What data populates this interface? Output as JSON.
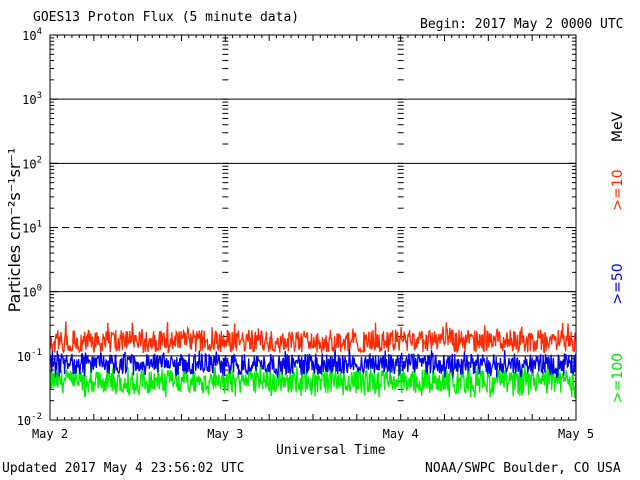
{
  "header": {
    "title": "GOES13 Proton Flux (5 minute data)",
    "begin": "Begin: 2017 May 2 0000 UTC"
  },
  "footer": {
    "updated": "Updated 2017 May  4 23:56:02 UTC",
    "credit": "NOAA/SWPC Boulder, CO USA"
  },
  "colors": {
    "p10": "#ff2a00",
    "p50": "#0000ee",
    "p100": "#00ee00",
    "grid": "#000000"
  },
  "chart_data": {
    "type": "line",
    "xlabel": "Universal Time",
    "ylabel": "Particles cm⁻²s⁻¹sr⁻¹",
    "yscale": "log",
    "ylim": [
      0.01,
      10000
    ],
    "ytick_labels": [
      {
        "base": "10",
        "exp": "-2",
        "value": 0.01
      },
      {
        "base": "10",
        "exp": "-1",
        "value": 0.1
      },
      {
        "base": "10",
        "exp": "0",
        "value": 1
      },
      {
        "base": "10",
        "exp": "1",
        "value": 10
      },
      {
        "base": "10",
        "exp": "2",
        "value": 100
      },
      {
        "base": "10",
        "exp": "3",
        "value": 1000
      },
      {
        "base": "10",
        "exp": "4",
        "value": 10000
      }
    ],
    "xlim": [
      "2017-05-02",
      "2017-05-05"
    ],
    "xtick_labels": [
      "May 2",
      "May 3",
      "May 4",
      "May 5"
    ],
    "unit_label": "MeV",
    "grid": true,
    "series": [
      {
        "name": ">=10",
        "color": "#ff2a00",
        "typical": 0.17,
        "low": 0.11,
        "high": 0.35
      },
      {
        "name": ">=50",
        "color": "#0000ee",
        "typical": 0.075,
        "low": 0.045,
        "high": 0.13
      },
      {
        "name": ">=100",
        "color": "#00ee00",
        "typical": 0.04,
        "low": 0.022,
        "high": 0.075
      }
    ]
  }
}
